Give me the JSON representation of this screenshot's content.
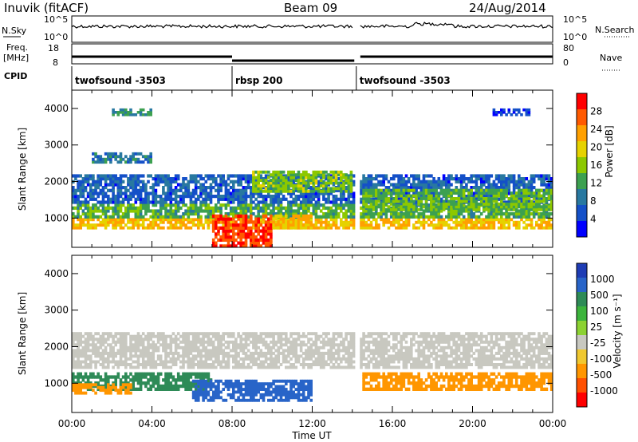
{
  "header": {
    "station": "Inuvik (fitACF)",
    "beam": "Beam 09",
    "date": "24/Aug/2014"
  },
  "sky_panel": {
    "left_label": "N.Sky",
    "right_label": "N.Search",
    "left_ticks": [
      "10^5",
      "10^0"
    ],
    "right_ticks": [
      "10^5",
      "10^0"
    ]
  },
  "freq_panel": {
    "left_label_line1": "Freq.",
    "left_label_line2": "[MHz]",
    "right_label": "Nave",
    "left_ticks": [
      "18",
      "8"
    ],
    "right_ticks": [
      "80",
      "0"
    ]
  },
  "cpid": {
    "label": "CPID",
    "segments": [
      {
        "label": "twofsound -3503",
        "start_h": 0,
        "end_h": 8
      },
      {
        "label": "rbsp 200",
        "start_h": 8,
        "end_h": 14.2
      },
      {
        "label": "twofsound -3503",
        "start_h": 14.2,
        "end_h": 24
      }
    ]
  },
  "x_axis": {
    "label": "Time UT",
    "ticks": [
      "00:00",
      "04:00",
      "08:00",
      "12:00",
      "16:00",
      "20:00",
      "00:00"
    ],
    "range_hours": [
      0,
      24
    ]
  },
  "chart_data": [
    {
      "type": "heatmap",
      "quantity": "Power",
      "ylabel": "Slant Range [km]",
      "ylim": [
        200,
        4500
      ],
      "yticks": [
        "1000",
        "2000",
        "3000",
        "4000"
      ],
      "colorbar_label": "Power [dB]",
      "colorbar_ticks": [
        "28",
        "24",
        "20",
        "16",
        "12",
        "8",
        "4"
      ],
      "colors": [
        "#ff0000",
        "#ff5a00",
        "#ffa000",
        "#e6d200",
        "#8cc800",
        "#3ca050",
        "#2878a0",
        "#1450c8",
        "#0000ff"
      ],
      "bands": [
        {
          "t": [
            0,
            24
          ],
          "r": [
            700,
            1000
          ],
          "level": 22
        },
        {
          "t": [
            0,
            24
          ],
          "r": [
            1000,
            1400
          ],
          "level": 14
        },
        {
          "t": [
            0,
            24
          ],
          "r": [
            1400,
            2200
          ],
          "level": 8
        },
        {
          "t": [
            1,
            4
          ],
          "r": [
            2500,
            2800
          ],
          "level": 10
        },
        {
          "t": [
            7,
            10
          ],
          "r": [
            200,
            1100
          ],
          "level": 28
        },
        {
          "t": [
            10,
            12
          ],
          "r": [
            700,
            1100
          ],
          "level": 22
        },
        {
          "t": [
            9,
            14
          ],
          "r": [
            1700,
            2300
          ],
          "level": 16
        },
        {
          "t": [
            14.5,
            24
          ],
          "r": [
            1200,
            1800
          ],
          "level": 15
        },
        {
          "t": [
            2,
            4
          ],
          "r": [
            3800,
            4000
          ],
          "level": 12
        },
        {
          "t": [
            21,
            23
          ],
          "r": [
            3800,
            4000
          ],
          "level": 6
        }
      ]
    },
    {
      "type": "heatmap",
      "quantity": "Velocity",
      "ylabel": "Slant Range [km]",
      "ylim": [
        200,
        4500
      ],
      "yticks": [
        "1000",
        "2000",
        "3000",
        "4000"
      ],
      "colorbar_label": "Velocity [m s⁻¹]",
      "colorbar_ticks": [
        "1000",
        "500",
        "100",
        "25",
        "-25",
        "-100",
        "-500",
        "-1000"
      ],
      "colors": [
        "#1e3cb4",
        "#2864c8",
        "#2e8b57",
        "#3cb43c",
        "#8cd232",
        "#c8c8c0",
        "#f0c830",
        "#ff9600",
        "#ff5000",
        "#ff0000"
      ],
      "bands": [
        {
          "t": [
            0,
            24
          ],
          "r": [
            1400,
            2400
          ],
          "level": 0
        },
        {
          "t": [
            0,
            7
          ],
          "r": [
            800,
            1300
          ],
          "level": 200
        },
        {
          "t": [
            6,
            12
          ],
          "r": [
            500,
            1100
          ],
          "level": 400
        },
        {
          "t": [
            14.5,
            24
          ],
          "r": [
            800,
            1300
          ],
          "level": -200
        },
        {
          "t": [
            0,
            3
          ],
          "r": [
            700,
            1000
          ],
          "level": -200
        }
      ]
    }
  ]
}
